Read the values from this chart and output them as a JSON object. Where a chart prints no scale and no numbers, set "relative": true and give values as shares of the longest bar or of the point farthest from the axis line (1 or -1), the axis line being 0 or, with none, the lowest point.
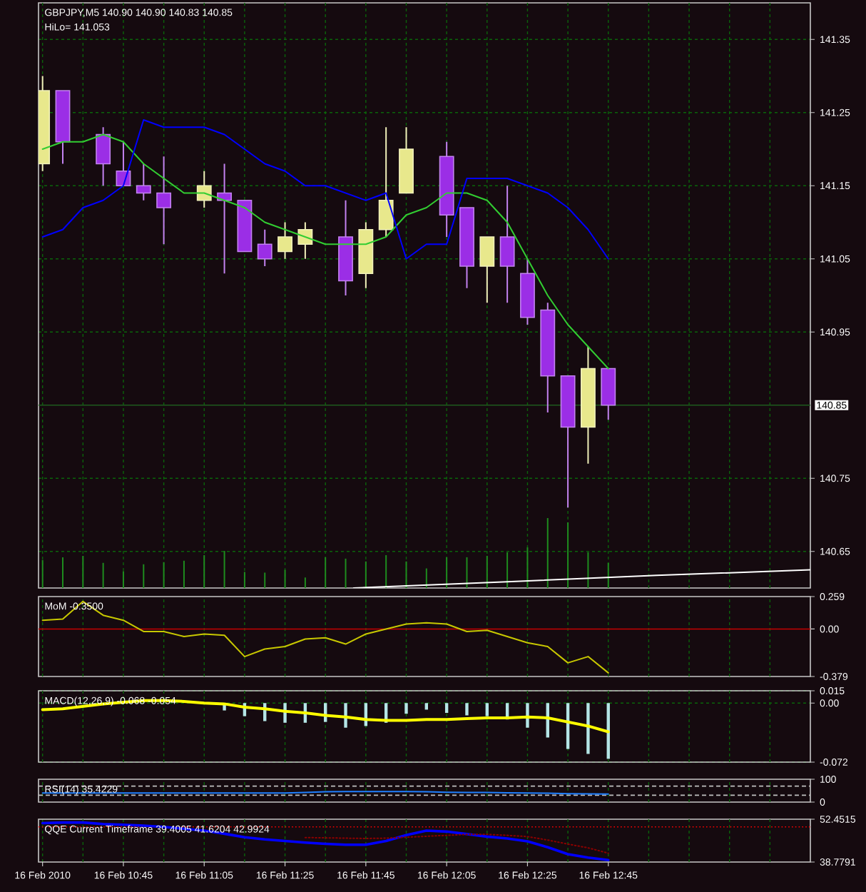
{
  "chart_data": [
    {
      "type": "candlestick",
      "title": "GBPJPY,M5  140.90 140.90 140.83 140.85",
      "annotations": [
        "HiLo= 141.053"
      ],
      "x": [
        "2010-02-16T10:25",
        "2010-02-16T10:30",
        "2010-02-16T10:35",
        "2010-02-16T10:40",
        "2010-02-16T10:45",
        "2010-02-16T10:50",
        "2010-02-16T10:55",
        "2010-02-16T11:00",
        "2010-02-16T11:05",
        "2010-02-16T11:10",
        "2010-02-16T11:15",
        "2010-02-16T11:20",
        "2010-02-16T11:25",
        "2010-02-16T11:30",
        "2010-02-16T11:35",
        "2010-02-16T11:40",
        "2010-02-16T11:45",
        "2010-02-16T11:50",
        "2010-02-16T11:55",
        "2010-02-16T12:00",
        "2010-02-16T12:05",
        "2010-02-16T12:10",
        "2010-02-16T12:15",
        "2010-02-16T12:20",
        "2010-02-16T12:25",
        "2010-02-16T12:30",
        "2010-02-16T12:35",
        "2010-02-16T12:40",
        "2010-02-16T12:45"
      ],
      "ohlc": [
        [
          141.18,
          141.3,
          141.17,
          141.28
        ],
        [
          141.28,
          141.28,
          141.18,
          141.21
        ],
        null,
        [
          141.22,
          141.23,
          141.15,
          141.18
        ],
        [
          141.17,
          141.21,
          141.15,
          141.15
        ],
        [
          141.15,
          141.18,
          141.13,
          141.14
        ],
        [
          141.14,
          141.19,
          141.07,
          141.12
        ],
        null,
        [
          141.13,
          141.17,
          141.12,
          141.15
        ],
        [
          141.14,
          141.18,
          141.03,
          141.13
        ],
        [
          141.13,
          141.13,
          141.06,
          141.06
        ],
        [
          141.07,
          141.09,
          141.04,
          141.05
        ],
        [
          141.06,
          141.1,
          141.05,
          141.08
        ],
        [
          141.07,
          141.1,
          141.05,
          141.09
        ],
        null,
        [
          141.08,
          141.13,
          141.0,
          141.02
        ],
        [
          141.03,
          141.1,
          141.01,
          141.09
        ],
        [
          141.09,
          141.23,
          141.08,
          141.13
        ],
        [
          141.14,
          141.23,
          141.14,
          141.2
        ],
        null,
        [
          141.19,
          141.21,
          141.08,
          141.11
        ],
        [
          141.12,
          141.12,
          141.01,
          141.04
        ],
        [
          141.04,
          141.08,
          140.99,
          141.08
        ],
        [
          141.08,
          141.15,
          140.99,
          141.04
        ],
        [
          141.03,
          141.05,
          140.96,
          140.97
        ],
        [
          140.98,
          140.99,
          140.84,
          140.89
        ],
        [
          140.89,
          140.89,
          140.71,
          140.82
        ],
        [
          140.82,
          140.93,
          140.77,
          140.9
        ],
        [
          140.9,
          140.9,
          140.83,
          140.85
        ]
      ],
      "colors": [
        "#e8e88c",
        "#9b2ee6",
        null,
        "#9b2ee6",
        "#9b2ee6",
        "#9b2ee6",
        "#9b2ee6",
        null,
        "#e8e88c",
        "#9b2ee6",
        "#9b2ee6",
        "#9b2ee6",
        "#e8e88c",
        "#e8e88c",
        null,
        "#9b2ee6",
        "#e8e88c",
        "#e8e88c",
        "#e8e88c",
        null,
        "#9b2ee6",
        "#9b2ee6",
        "#e8e88c",
        "#9b2ee6",
        "#9b2ee6",
        "#9b2ee6",
        "#9b2ee6",
        "#e8e88c",
        "#9b2ee6"
      ],
      "series": [
        {
          "type": "line",
          "color": "#32cd32",
          "values": [
            141.2,
            141.21,
            141.21,
            141.22,
            141.21,
            141.18,
            141.16,
            141.14,
            141.14,
            141.13,
            141.12,
            141.1,
            141.09,
            141.08,
            141.07,
            141.07,
            141.07,
            141.08,
            141.11,
            141.12,
            141.14,
            141.14,
            141.13,
            141.1,
            141.05,
            141.0,
            140.96,
            140.93,
            140.9
          ]
        },
        {
          "type": "line",
          "color": "#0000ff",
          "values": [
            141.08,
            141.09,
            141.12,
            141.13,
            141.15,
            141.24,
            141.23,
            141.23,
            141.23,
            141.22,
            141.2,
            141.18,
            141.17,
            141.15,
            141.15,
            141.14,
            141.13,
            141.14,
            141.05,
            141.07,
            141.07,
            141.16,
            141.16,
            141.16,
            141.15,
            141.14,
            141.12,
            141.09,
            141.05
          ]
        }
      ],
      "xlim": [
        "2010-02-16T10:24",
        "2010-02-16T13:35"
      ],
      "xticks": [
        {
          "value": "2010-02-16T10:25",
          "label": null
        },
        {
          "value": "2010-02-16T10:35",
          "label": null
        },
        {
          "value": "2010-02-16T10:45",
          "label": null
        },
        {
          "value": "2010-02-16T10:55",
          "label": null
        },
        {
          "value": "2010-02-16T11:05",
          "label": null
        },
        {
          "value": "2010-02-16T11:15",
          "label": null
        },
        {
          "value": "2010-02-16T11:25",
          "label": null
        },
        {
          "value": "2010-02-16T11:35",
          "label": null
        },
        {
          "value": "2010-02-16T11:45",
          "label": null
        },
        {
          "value": "2010-02-16T11:55",
          "label": null
        },
        {
          "value": "2010-02-16T12:05",
          "label": null
        },
        {
          "value": "2010-02-16T12:15",
          "label": null
        },
        {
          "value": "2010-02-16T12:25",
          "label": null
        },
        {
          "value": "2010-02-16T12:35",
          "label": null
        },
        {
          "value": "2010-02-16T12:45",
          "label": null
        },
        {
          "value": "2010-02-16T12:55",
          "label": null
        },
        {
          "value": "2010-02-16T13:05",
          "label": null
        },
        {
          "value": "2010-02-16T13:15",
          "label": null
        },
        {
          "value": "2010-02-16T13:25",
          "label": null
        }
      ],
      "ylim": [
        140.6,
        141.4
      ],
      "yticks": [
        140.65,
        140.75,
        140.95,
        141.05,
        141.15,
        141.25,
        141.35
      ],
      "ref_lines": [
        {
          "axis": "y",
          "value": 140.85,
          "label": "140.85",
          "color": "#1e5a1e",
          "line_style": "solid"
        }
      ],
      "grid": true,
      "tick_labels": "y"
    },
    {
      "type": "bar",
      "relative": true,
      "x": [
        "2010-02-16T10:25",
        "2010-02-16T10:30",
        "2010-02-16T10:35",
        "2010-02-16T10:40",
        "2010-02-16T10:45",
        "2010-02-16T10:50",
        "2010-02-16T10:55",
        "2010-02-16T11:00",
        "2010-02-16T11:05",
        "2010-02-16T11:10",
        "2010-02-16T11:15",
        "2010-02-16T11:20",
        "2010-02-16T11:25",
        "2010-02-16T11:30",
        "2010-02-16T11:35",
        "2010-02-16T11:40",
        "2010-02-16T11:45",
        "2010-02-16T11:50",
        "2010-02-16T11:55",
        "2010-02-16T12:00",
        "2010-02-16T12:05",
        "2010-02-16T12:10",
        "2010-02-16T12:15",
        "2010-02-16T12:20",
        "2010-02-16T12:25",
        "2010-02-16T12:30",
        "2010-02-16T12:35",
        "2010-02-16T12:40",
        "2010-02-16T12:45"
      ],
      "values": [
        0.4,
        0.44,
        0.46,
        0.36,
        0.24,
        0.34,
        0.37,
        0.39,
        0.47,
        0.53,
        0.23,
        0.22,
        0.26,
        0.15,
        0.44,
        0.42,
        0.38,
        0.47,
        0.38,
        0.28,
        0.44,
        0.44,
        0.46,
        0.51,
        0.58,
        1,
        0.94,
        0.51,
        0.36
      ],
      "color": "#1e8c1e",
      "series": [
        {
          "type": "line",
          "color": "#ffffff",
          "x": [
            "2010-02-16T11:42",
            "2010-02-16T12:20",
            "2010-02-16T12:57",
            "2010-02-16T13:35"
          ],
          "values": [
            0,
            0.09,
            0.18,
            0.26
          ]
        }
      ],
      "xlim": [
        "2010-02-16T10:24",
        "2010-02-16T13:35"
      ],
      "tick_labels": false
    },
    {
      "type": "line",
      "title": "MoM -0.3500",
      "x": [
        "2010-02-16T10:25",
        "2010-02-16T10:30",
        "2010-02-16T10:35",
        "2010-02-16T10:40",
        "2010-02-16T10:45",
        "2010-02-16T10:50",
        "2010-02-16T10:55",
        "2010-02-16T11:00",
        "2010-02-16T11:05",
        "2010-02-16T11:10",
        "2010-02-16T11:15",
        "2010-02-16T11:20",
        "2010-02-16T11:25",
        "2010-02-16T11:30",
        "2010-02-16T11:35",
        "2010-02-16T11:40",
        "2010-02-16T11:45",
        "2010-02-16T11:50",
        "2010-02-16T11:55",
        "2010-02-16T12:00",
        "2010-02-16T12:05",
        "2010-02-16T12:10",
        "2010-02-16T12:15",
        "2010-02-16T12:20",
        "2010-02-16T12:25",
        "2010-02-16T12:30",
        "2010-02-16T12:35",
        "2010-02-16T12:40",
        "2010-02-16T12:45"
      ],
      "values": [
        0.07,
        0.08,
        0.22,
        0.11,
        0.07,
        -0.02,
        -0.02,
        -0.06,
        -0.04,
        -0.05,
        -0.22,
        -0.16,
        -0.14,
        -0.08,
        -0.07,
        -0.12,
        -0.04,
        0.0,
        0.04,
        0.05,
        0.04,
        -0.02,
        -0.01,
        -0.06,
        -0.11,
        -0.14,
        -0.27,
        -0.22,
        -0.35
      ],
      "color": "#c8c800",
      "xlim": [
        "2010-02-16T10:24",
        "2010-02-16T13:35"
      ],
      "xticks": [
        {
          "value": "2010-02-16T10:25",
          "label": null
        },
        {
          "value": "2010-02-16T10:35",
          "label": null
        },
        {
          "value": "2010-02-16T10:45",
          "label": null
        },
        {
          "value": "2010-02-16T10:55",
          "label": null
        },
        {
          "value": "2010-02-16T11:05",
          "label": null
        },
        {
          "value": "2010-02-16T11:15",
          "label": null
        },
        {
          "value": "2010-02-16T11:25",
          "label": null
        },
        {
          "value": "2010-02-16T11:35",
          "label": null
        },
        {
          "value": "2010-02-16T11:45",
          "label": null
        },
        {
          "value": "2010-02-16T11:55",
          "label": null
        },
        {
          "value": "2010-02-16T12:05",
          "label": null
        },
        {
          "value": "2010-02-16T12:15",
          "label": null
        },
        {
          "value": "2010-02-16T12:25",
          "label": null
        },
        {
          "value": "2010-02-16T12:35",
          "label": null
        },
        {
          "value": "2010-02-16T12:45",
          "label": null
        },
        {
          "value": "2010-02-16T12:55",
          "label": null
        },
        {
          "value": "2010-02-16T13:05",
          "label": null
        },
        {
          "value": "2010-02-16T13:15",
          "label": null
        },
        {
          "value": "2010-02-16T13:25",
          "label": null
        }
      ],
      "ylim": [
        -0.379,
        0.259
      ],
      "yticks": [
        -0.379,
        {
          "value": 0,
          "label": "0.00"
        },
        0.259
      ],
      "ref_lines": [
        {
          "axis": "y",
          "value": 0,
          "color": "#c80000"
        }
      ],
      "grid": "x",
      "tick_labels": "y"
    },
    {
      "type": "bar",
      "title": "MACD(12,26,9) -0.068 -0.054",
      "x": [
        "2010-02-16T10:25",
        "2010-02-16T10:30",
        "2010-02-16T10:35",
        "2010-02-16T10:40",
        "2010-02-16T10:45",
        "2010-02-16T10:50",
        "2010-02-16T10:55",
        "2010-02-16T11:00",
        "2010-02-16T11:05",
        "2010-02-16T11:10",
        "2010-02-16T11:15",
        "2010-02-16T11:20",
        "2010-02-16T11:25",
        "2010-02-16T11:30",
        "2010-02-16T11:35",
        "2010-02-16T11:40",
        "2010-02-16T11:45",
        "2010-02-16T11:50",
        "2010-02-16T11:55",
        "2010-02-16T12:00",
        "2010-02-16T12:05",
        "2010-02-16T12:10",
        "2010-02-16T12:15",
        "2010-02-16T12:20",
        "2010-02-16T12:25",
        "2010-02-16T12:30",
        "2010-02-16T12:35",
        "2010-02-16T12:40",
        "2010-02-16T12:45"
      ],
      "values": [
        null,
        null,
        null,
        null,
        null,
        null,
        null,
        null,
        null,
        -0.009,
        -0.016,
        -0.022,
        -0.024,
        -0.024,
        -0.023,
        -0.03,
        -0.028,
        -0.024,
        -0.013,
        -0.008,
        -0.012,
        -0.015,
        -0.016,
        -0.02,
        -0.03,
        -0.042,
        -0.056,
        -0.062,
        -0.068
      ],
      "color": "#b4e6e6",
      "series": [
        {
          "type": "line",
          "color": "#ffff00",
          "values": [
            -0.008,
            -0.007,
            -0.004,
            -0.001,
            0.001,
            0.003,
            0.003,
            0.002,
            0.0,
            -0.001,
            -0.005,
            -0.007,
            -0.01,
            -0.012,
            -0.015,
            -0.017,
            -0.02,
            -0.021,
            -0.021,
            -0.02,
            -0.02,
            -0.019,
            -0.018,
            -0.018,
            -0.017,
            -0.018,
            -0.023,
            -0.028,
            -0.035
          ]
        }
      ],
      "xlim": [
        "2010-02-16T10:24",
        "2010-02-16T13:35"
      ],
      "xticks": [
        {
          "value": "2010-02-16T10:25",
          "label": null
        },
        {
          "value": "2010-02-16T10:35",
          "label": null
        },
        {
          "value": "2010-02-16T10:45",
          "label": null
        },
        {
          "value": "2010-02-16T10:55",
          "label": null
        },
        {
          "value": "2010-02-16T11:05",
          "label": null
        },
        {
          "value": "2010-02-16T11:15",
          "label": null
        },
        {
          "value": "2010-02-16T11:25",
          "label": null
        },
        {
          "value": "2010-02-16T11:35",
          "label": null
        },
        {
          "value": "2010-02-16T11:45",
          "label": null
        },
        {
          "value": "2010-02-16T11:55",
          "label": null
        },
        {
          "value": "2010-02-16T12:05",
          "label": null
        },
        {
          "value": "2010-02-16T12:15",
          "label": null
        },
        {
          "value": "2010-02-16T12:25",
          "label": null
        },
        {
          "value": "2010-02-16T12:35",
          "label": null
        },
        {
          "value": "2010-02-16T12:45",
          "label": null
        },
        {
          "value": "2010-02-16T12:55",
          "label": null
        },
        {
          "value": "2010-02-16T13:05",
          "label": null
        },
        {
          "value": "2010-02-16T13:15",
          "label": null
        },
        {
          "value": "2010-02-16T13:25",
          "label": null
        }
      ],
      "ylim": [
        -0.072,
        0.015
      ],
      "yticks": [
        -0.072,
        {
          "value": 0,
          "label": "0.00"
        },
        0.015
      ],
      "grid": true,
      "tick_labels": "y"
    },
    {
      "type": "line",
      "title": "RSI(14) 35.4229",
      "x": [
        "2010-02-16T10:25",
        "2010-02-16T10:30",
        "2010-02-16T10:35",
        "2010-02-16T10:40",
        "2010-02-16T10:45",
        "2010-02-16T10:50",
        "2010-02-16T10:55",
        "2010-02-16T11:00",
        "2010-02-16T11:05",
        "2010-02-16T11:10",
        "2010-02-16T11:15",
        "2010-02-16T11:20",
        "2010-02-16T11:25",
        "2010-02-16T11:30",
        "2010-02-16T11:35",
        "2010-02-16T11:40",
        "2010-02-16T11:45",
        "2010-02-16T11:50",
        "2010-02-16T11:55",
        "2010-02-16T12:00",
        "2010-02-16T12:05",
        "2010-02-16T12:10",
        "2010-02-16T12:15",
        "2010-02-16T12:20",
        "2010-02-16T12:25",
        "2010-02-16T12:30",
        "2010-02-16T12:35",
        "2010-02-16T12:40",
        "2010-02-16T12:45"
      ],
      "values": [
        40,
        40,
        40,
        40,
        40,
        40,
        40,
        40,
        40,
        40,
        40,
        40,
        40,
        42,
        45,
        46,
        46,
        46,
        46,
        45,
        43,
        42,
        42,
        41,
        40,
        39,
        37,
        36,
        35
      ],
      "color": "#2080ff",
      "xlim": [
        "2010-02-16T10:24",
        "2010-02-16T13:35"
      ],
      "xticks": [
        {
          "value": "2010-02-16T10:25",
          "label": null
        },
        {
          "value": "2010-02-16T10:35",
          "label": null
        },
        {
          "value": "2010-02-16T10:45",
          "label": null
        },
        {
          "value": "2010-02-16T10:55",
          "label": null
        },
        {
          "value": "2010-02-16T11:05",
          "label": null
        },
        {
          "value": "2010-02-16T11:15",
          "label": null
        },
        {
          "value": "2010-02-16T11:25",
          "label": null
        },
        {
          "value": "2010-02-16T11:35",
          "label": null
        },
        {
          "value": "2010-02-16T11:45",
          "label": null
        },
        {
          "value": "2010-02-16T11:55",
          "label": null
        },
        {
          "value": "2010-02-16T12:05",
          "label": null
        },
        {
          "value": "2010-02-16T12:15",
          "label": null
        },
        {
          "value": "2010-02-16T12:25",
          "label": null
        },
        {
          "value": "2010-02-16T12:35",
          "label": null
        },
        {
          "value": "2010-02-16T12:45",
          "label": null
        },
        {
          "value": "2010-02-16T12:55",
          "label": null
        },
        {
          "value": "2010-02-16T13:05",
          "label": null
        },
        {
          "value": "2010-02-16T13:15",
          "label": null
        },
        {
          "value": "2010-02-16T13:25",
          "label": null
        }
      ],
      "ylim": [
        0,
        100
      ],
      "yticks": [
        0,
        100
      ],
      "ref_lines": [
        {
          "axis": "y",
          "value": 70,
          "color": "#c0c0c0",
          "line_style": "dashed"
        },
        {
          "axis": "y",
          "value": 30,
          "color": "#c0c0c0",
          "line_style": "dashed"
        }
      ],
      "grid": "x",
      "tick_labels": "y"
    },
    {
      "type": "line",
      "title": "QQE Current Timeframe 39.4005 41.6204 42.9924",
      "x": [
        "2010-02-16T10:25",
        "2010-02-16T10:30",
        "2010-02-16T10:35",
        "2010-02-16T10:40",
        "2010-02-16T10:45",
        "2010-02-16T10:50",
        "2010-02-16T10:55",
        "2010-02-16T11:00",
        "2010-02-16T11:05",
        "2010-02-16T11:10",
        "2010-02-16T11:15",
        "2010-02-16T11:20",
        "2010-02-16T11:25",
        "2010-02-16T11:30",
        "2010-02-16T11:35",
        "2010-02-16T11:40",
        "2010-02-16T11:45",
        "2010-02-16T11:50",
        "2010-02-16T11:55",
        "2010-02-16T12:00",
        "2010-02-16T12:05",
        "2010-02-16T12:10",
        "2010-02-16T12:15",
        "2010-02-16T12:20",
        "2010-02-16T12:25",
        "2010-02-16T12:30",
        "2010-02-16T12:35",
        "2010-02-16T12:40",
        "2010-02-16T12:45"
      ],
      "series": [
        {
          "color": "#0000ff",
          "values": [
            51.2,
            51.4,
            51.4,
            50.9,
            50.7,
            50.4,
            50.0,
            49.4,
            48.8,
            47.8,
            46.7,
            46.0,
            45.5,
            45.0,
            44.6,
            44.3,
            44.3,
            45.5,
            47.4,
            48.8,
            48.5,
            47.7,
            46.9,
            46.3,
            45.4,
            43.5,
            41.3,
            40.2,
            39.4
          ]
        },
        {
          "color": "#8b0000",
          "line_style": "dotted",
          "values": [
            null,
            null,
            null,
            null,
            null,
            null,
            null,
            null,
            null,
            null,
            null,
            null,
            null,
            46.6,
            46.5,
            46.4,
            46.3,
            46.4,
            46.7,
            47.0,
            47.3,
            47.6,
            47.6,
            47.3,
            46.9,
            45.8,
            44.5,
            43.3,
            41.6
          ]
        }
      ],
      "xlim": [
        "2010-02-16T10:24",
        "2010-02-16T13:35"
      ],
      "xticks": [
        {
          "value": "2010-02-16T10:25",
          "label": "16 Feb 2010"
        },
        {
          "value": "2010-02-16T10:35",
          "label": null
        },
        {
          "value": "2010-02-16T10:45",
          "label": "16 Feb 10:45"
        },
        {
          "value": "2010-02-16T10:55",
          "label": null
        },
        {
          "value": "2010-02-16T11:05",
          "label": "16 Feb 11:05"
        },
        {
          "value": "2010-02-16T11:15",
          "label": null
        },
        {
          "value": "2010-02-16T11:25",
          "label": "16 Feb 11:25"
        },
        {
          "value": "2010-02-16T11:35",
          "label": null
        },
        {
          "value": "2010-02-16T11:45",
          "label": "16 Feb 11:45"
        },
        {
          "value": "2010-02-16T11:55",
          "label": null
        },
        {
          "value": "2010-02-16T12:05",
          "label": "16 Feb 12:05"
        },
        {
          "value": "2010-02-16T12:15",
          "label": null
        },
        {
          "value": "2010-02-16T12:25",
          "label": "16 Feb 12:25"
        },
        {
          "value": "2010-02-16T12:35",
          "label": null
        },
        {
          "value": "2010-02-16T12:45",
          "label": "16 Feb 12:45"
        },
        {
          "value": "2010-02-16T12:55",
          "label": null
        },
        {
          "value": "2010-02-16T13:05",
          "label": null
        },
        {
          "value": "2010-02-16T13:15",
          "label": null
        },
        {
          "value": "2010-02-16T13:25",
          "label": null
        }
      ],
      "ylim": [
        38.7791,
        52.4515
      ],
      "yticks": [
        38.7791,
        52.4515
      ],
      "ref_lines": [
        {
          "axis": "y",
          "value": 50,
          "color": "#ff0000",
          "line_style": "dotted"
        }
      ],
      "grid": "x"
    }
  ]
}
